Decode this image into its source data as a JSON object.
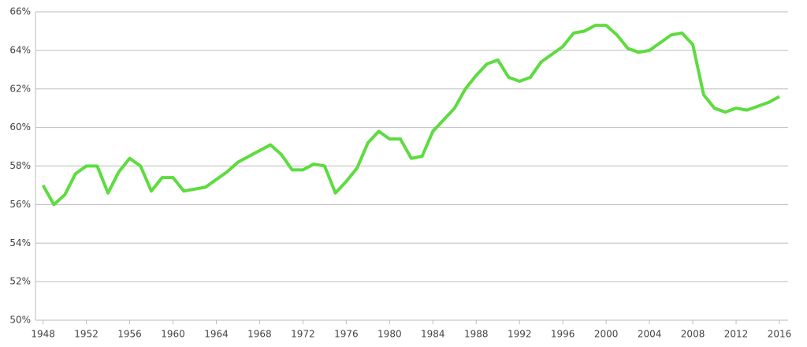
{
  "chart_data": {
    "type": "line",
    "x": [
      1948,
      1949,
      1950,
      1951,
      1952,
      1953,
      1954,
      1955,
      1956,
      1957,
      1958,
      1959,
      1960,
      1961,
      1962,
      1963,
      1964,
      1965,
      1966,
      1967,
      1968,
      1969,
      1970,
      1971,
      1972,
      1973,
      1974,
      1975,
      1976,
      1977,
      1978,
      1979,
      1980,
      1981,
      1982,
      1983,
      1984,
      1985,
      1986,
      1987,
      1988,
      1989,
      1990,
      1991,
      1992,
      1993,
      1994,
      1995,
      1996,
      1997,
      1998,
      1999,
      2000,
      2001,
      2002,
      2003,
      2004,
      2005,
      2006,
      2007,
      2008,
      2009,
      2010,
      2011,
      2012,
      2013,
      2014,
      2015,
      2016
    ],
    "series": [
      {
        "color": "#5ddc3f",
        "values": [
          57.0,
          56.0,
          56.5,
          57.6,
          58.0,
          58.0,
          56.6,
          57.7,
          58.4,
          58.0,
          56.7,
          57.4,
          57.4,
          56.7,
          56.8,
          56.9,
          57.3,
          57.7,
          58.2,
          58.5,
          58.8,
          59.1,
          58.6,
          57.8,
          57.8,
          58.1,
          58.0,
          56.6,
          57.2,
          57.9,
          59.2,
          59.8,
          59.4,
          59.4,
          58.4,
          58.5,
          59.8,
          60.4,
          61.0,
          62.0,
          62.7,
          63.3,
          63.5,
          62.6,
          62.4,
          62.6,
          63.4,
          63.8,
          64.2,
          64.9,
          65.0,
          65.3,
          65.3,
          64.8,
          64.1,
          63.9,
          64.0,
          64.4,
          64.8,
          64.9,
          64.3,
          61.7,
          61.0,
          60.8,
          61.0,
          60.9,
          61.1,
          61.3,
          61.6
        ]
      }
    ],
    "xlim": [
      1947.3,
      2016.8
    ],
    "xticks": [
      1948,
      1952,
      1956,
      1960,
      1964,
      1968,
      1972,
      1976,
      1980,
      1984,
      1988,
      1992,
      1996,
      2000,
      2004,
      2008,
      2012,
      2016
    ],
    "ylim": [
      50,
      66
    ],
    "yticks": [
      {
        "value": 50,
        "label": "50%"
      },
      {
        "value": 52,
        "label": "52%"
      },
      {
        "value": 54,
        "label": "54%"
      },
      {
        "value": 56,
        "label": "56%"
      },
      {
        "value": 58,
        "label": "58%"
      },
      {
        "value": 60,
        "label": "60%"
      },
      {
        "value": 62,
        "label": "62%"
      },
      {
        "value": 64,
        "label": "64%"
      },
      {
        "value": 66,
        "label": "66%"
      }
    ],
    "grid": true
  }
}
